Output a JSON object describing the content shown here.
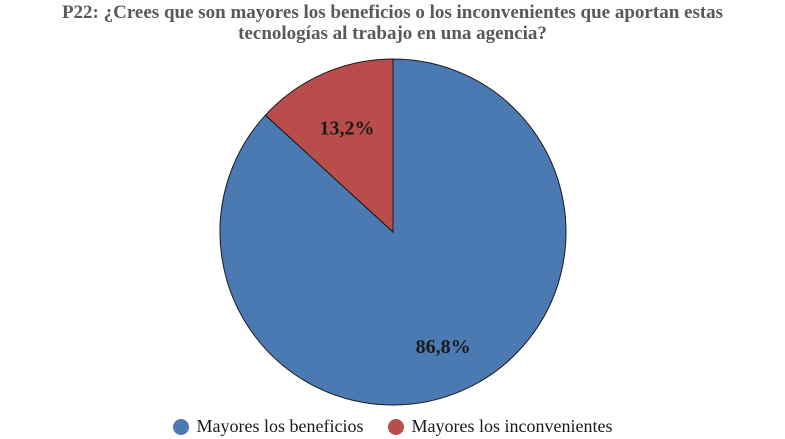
{
  "chart_data": {
    "type": "pie",
    "title_line1": "P22: ¿Crees que son mayores los beneficios o los inconvenientes que aportan estas",
    "title_line2": "tecnologías al trabajo en una agencia?",
    "slices": [
      {
        "name": "Mayores los beneficios",
        "value": 86.8,
        "label": "86,8%",
        "color": "#4a7ab1"
      },
      {
        "name": "Mayores los inconvenientes",
        "value": 13.2,
        "label": "13,2%",
        "color": "#b84d4b"
      }
    ],
    "legend_position": "bottom"
  }
}
